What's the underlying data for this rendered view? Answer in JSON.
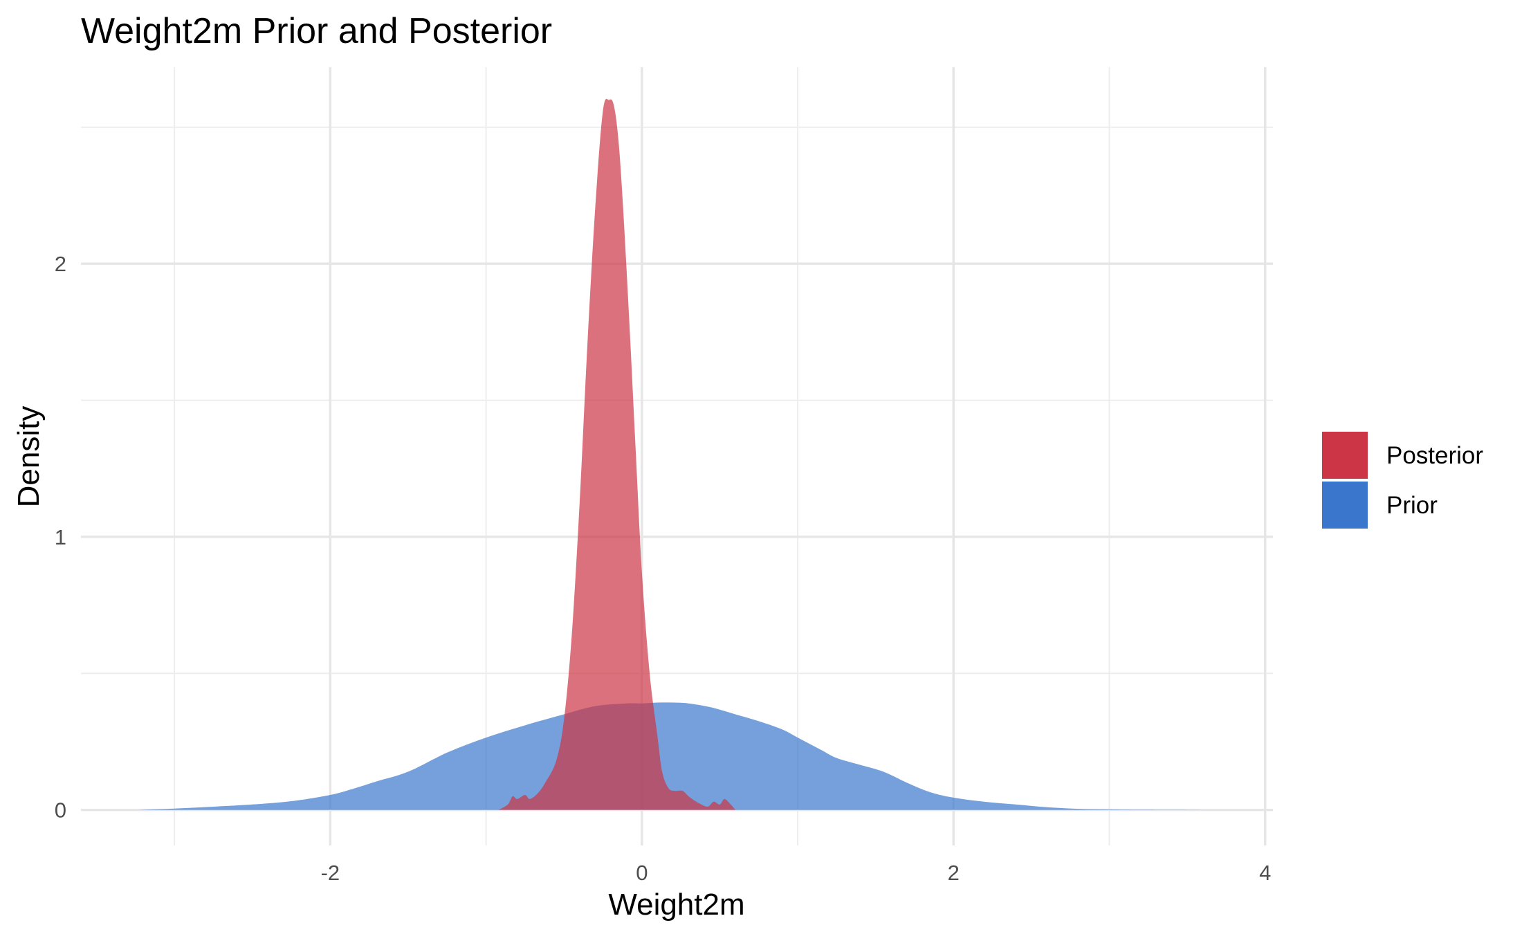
{
  "chart_data": {
    "type": "area",
    "title": "Weight2m Prior and Posterior",
    "xlabel": "Weight2m",
    "ylabel": "Density",
    "xlim": [
      -3.6,
      4.05
    ],
    "ylim": [
      -0.13,
      2.72
    ],
    "x_ticks": [
      -2,
      0,
      2,
      4
    ],
    "x_tick_labels": [
      "-2",
      "0",
      "2",
      "4"
    ],
    "x_minor_ticks": [
      -3,
      -1,
      1,
      3
    ],
    "y_ticks": [
      0,
      1,
      2
    ],
    "y_tick_labels": [
      "0",
      "1",
      "2"
    ],
    "y_minor_ticks": [
      0.5,
      1.5,
      2.5
    ],
    "grid": true,
    "legend_position": "right",
    "series": [
      {
        "name": "Prior",
        "color": "#3a77cc",
        "fill_opacity": 0.7,
        "x": [
          -3.25,
          -3.0,
          -2.75,
          -2.5,
          -2.25,
          -2.0,
          -1.85,
          -1.7,
          -1.5,
          -1.25,
          -1.0,
          -0.75,
          -0.5,
          -0.3,
          -0.1,
          0.0,
          0.1,
          0.2,
          0.3,
          0.45,
          0.6,
          0.75,
          0.9,
          1.0,
          1.15,
          1.25,
          1.4,
          1.55,
          1.7,
          1.85,
          2.0,
          2.2,
          2.4,
          2.6,
          2.8,
          3.0,
          3.2,
          3.5,
          3.75
        ],
        "y": [
          0.0,
          0.005,
          0.012,
          0.02,
          0.032,
          0.055,
          0.078,
          0.105,
          0.14,
          0.21,
          0.265,
          0.31,
          0.35,
          0.38,
          0.39,
          0.39,
          0.393,
          0.393,
          0.39,
          0.375,
          0.35,
          0.325,
          0.295,
          0.265,
          0.22,
          0.19,
          0.165,
          0.14,
          0.1,
          0.065,
          0.045,
          0.03,
          0.02,
          0.01,
          0.004,
          0.002,
          0.001,
          0.0005,
          0.0
        ]
      },
      {
        "name": "Posterior",
        "color": "#cc3545",
        "fill_opacity": 0.7,
        "x": [
          -0.92,
          -0.86,
          -0.83,
          -0.8,
          -0.75,
          -0.72,
          -0.67,
          -0.62,
          -0.55,
          -0.5,
          -0.45,
          -0.4,
          -0.35,
          -0.3,
          -0.25,
          -0.21,
          -0.18,
          -0.15,
          -0.12,
          -0.08,
          -0.04,
          0.0,
          0.05,
          0.1,
          0.13,
          0.17,
          0.21,
          0.26,
          0.3,
          0.35,
          0.42,
          0.46,
          0.5,
          0.53,
          0.57,
          0.6
        ],
        "y": [
          0.0,
          0.02,
          0.05,
          0.04,
          0.055,
          0.04,
          0.06,
          0.1,
          0.18,
          0.33,
          0.64,
          1.12,
          1.7,
          2.2,
          2.56,
          2.6,
          2.58,
          2.45,
          2.2,
          1.78,
          1.32,
          0.87,
          0.5,
          0.27,
          0.14,
          0.08,
          0.07,
          0.07,
          0.05,
          0.03,
          0.012,
          0.03,
          0.02,
          0.04,
          0.02,
          0.0
        ]
      }
    ],
    "legend_order": [
      "Posterior",
      "Prior"
    ]
  }
}
